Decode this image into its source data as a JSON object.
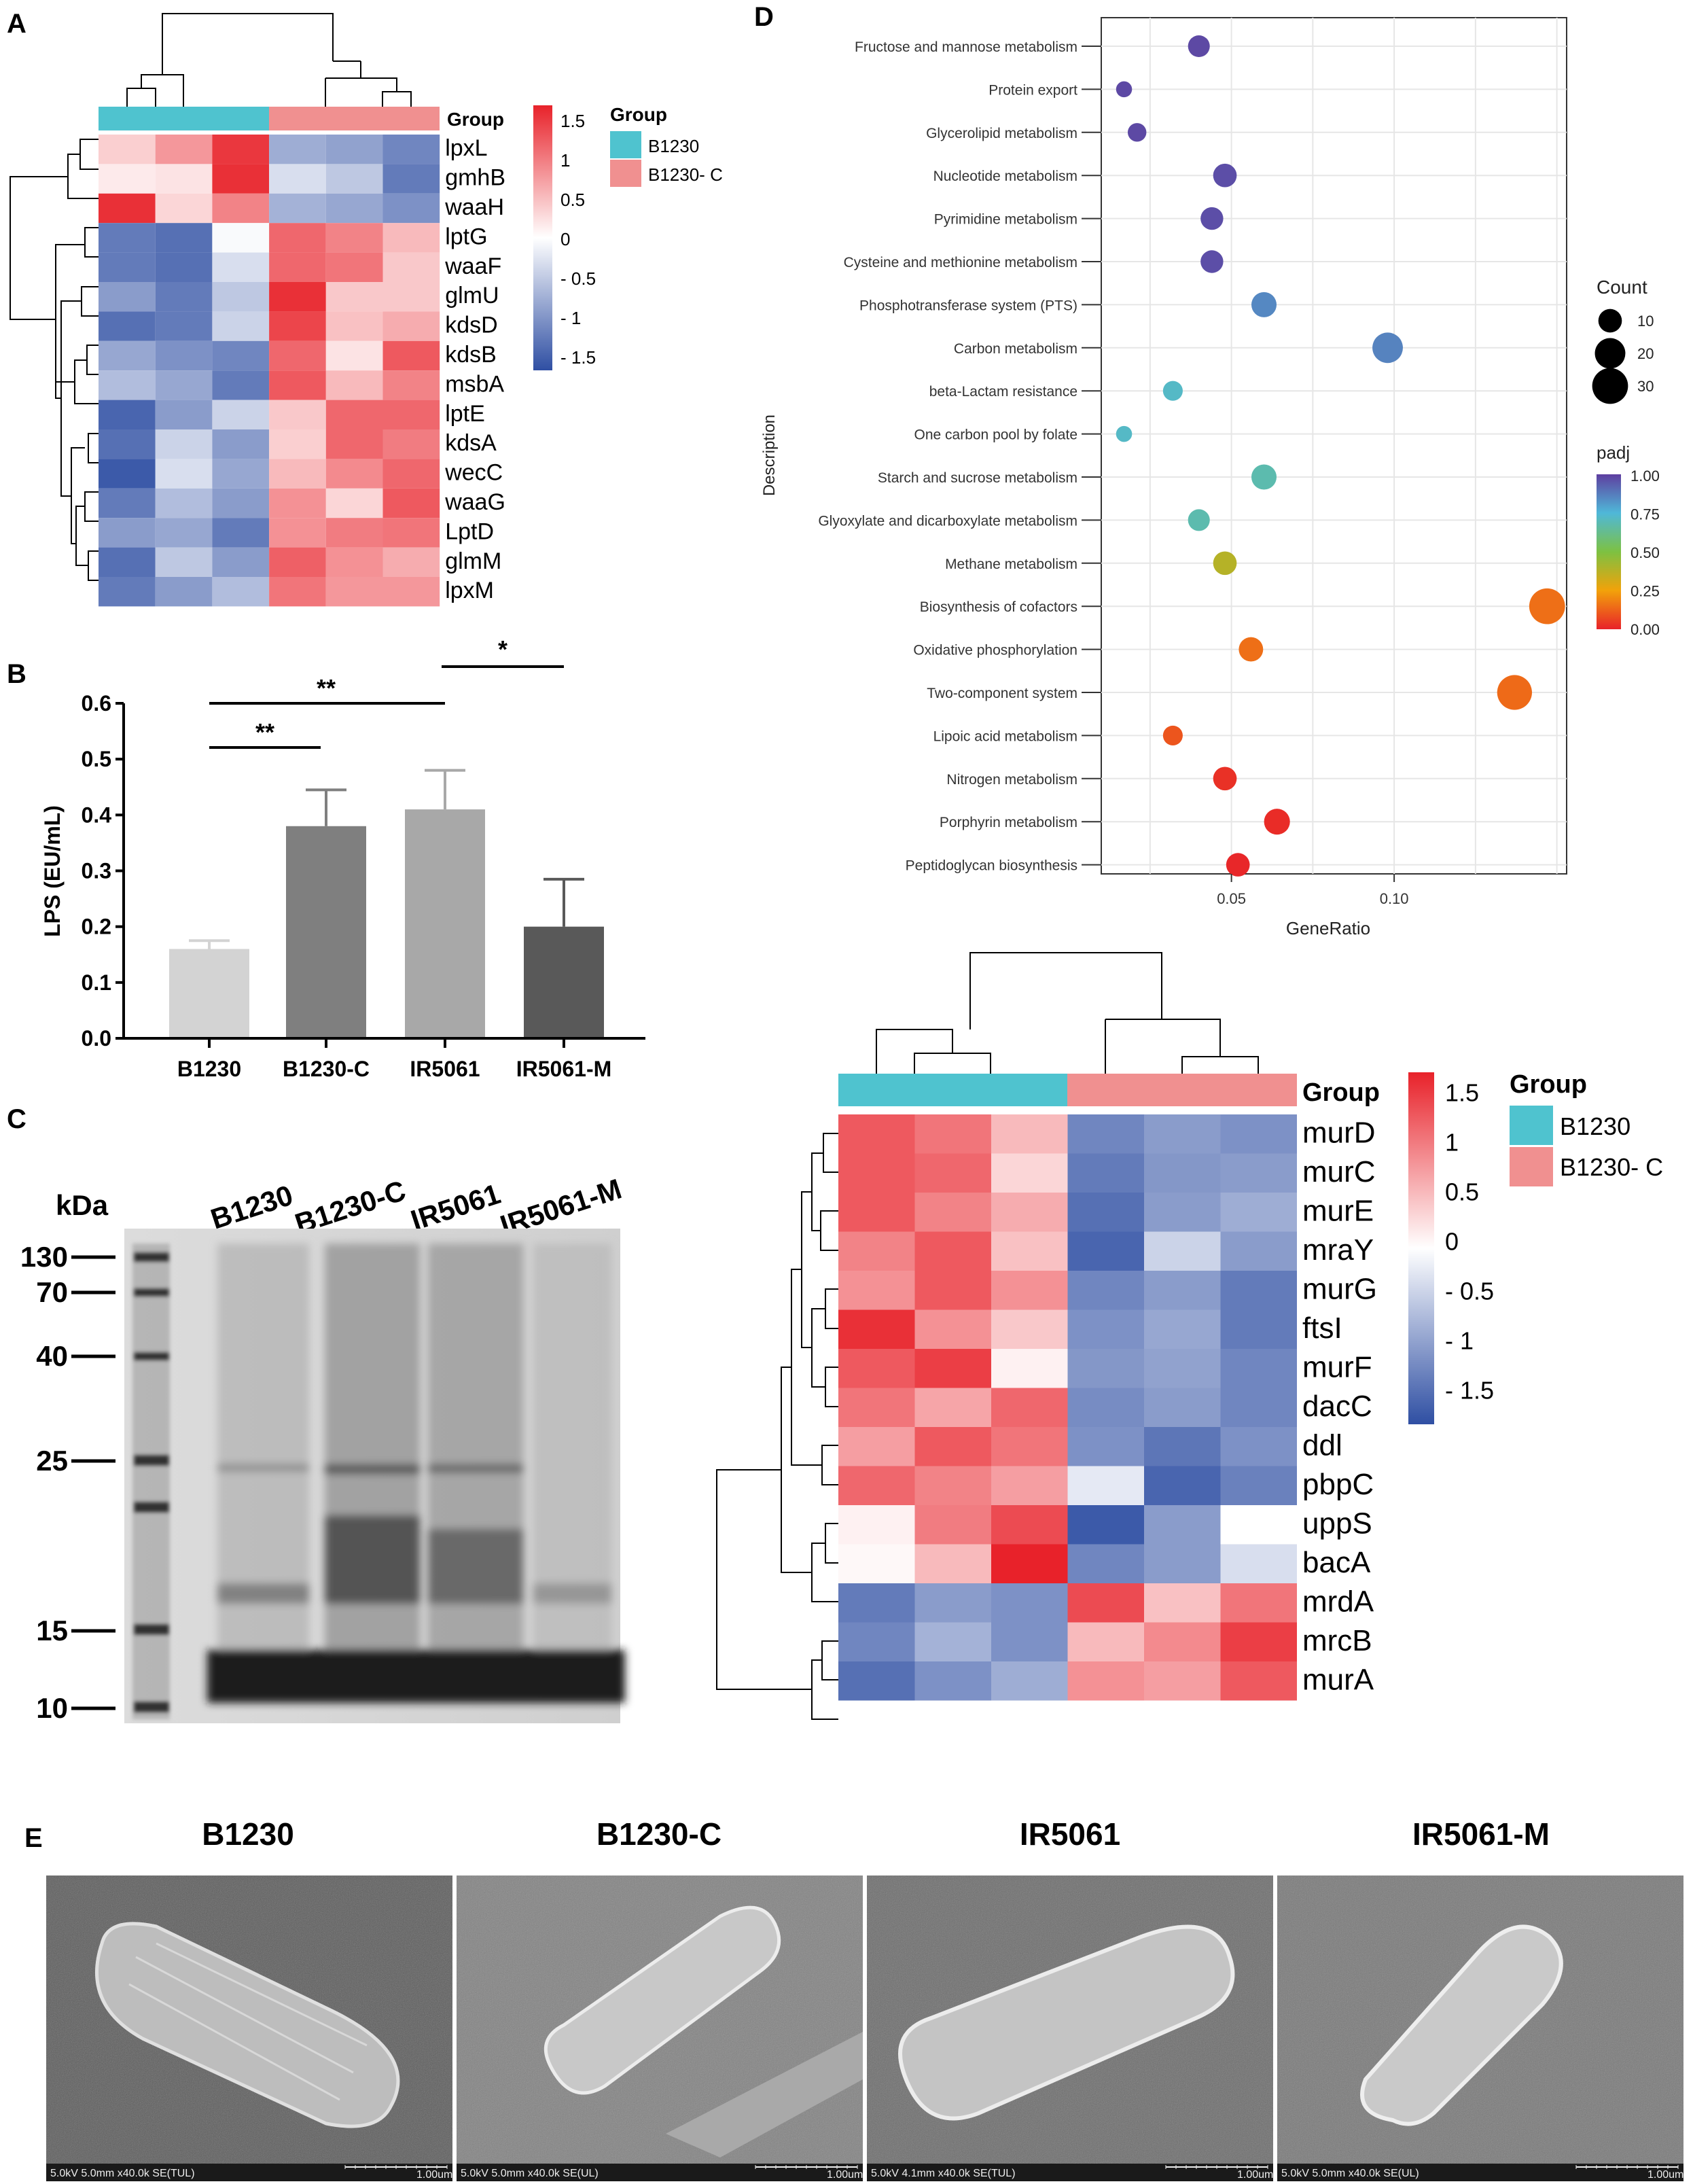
{
  "panels": {
    "A": "A",
    "B": "B",
    "C": "C",
    "D": "D",
    "E": "E"
  },
  "colors": {
    "teal": "#4fc3cf",
    "salmon": "#f09090",
    "hot": "#e8222a",
    "cold": "#2f4fa3",
    "mid": "#ffffff"
  },
  "heatA": {
    "group_label": "Group",
    "legend_title": "Group",
    "groups": [
      "B1230",
      "B1230- C"
    ],
    "scale_ticks": [
      "1.5",
      "1",
      "0.5",
      "0",
      "- 0.5",
      "- 1",
      "- 1.5"
    ],
    "genes": [
      "lpxL",
      "gmhB",
      "waaH",
      "lptG",
      "waaF",
      "glmU",
      "kdsD",
      "kdsB",
      "msbA",
      "lptE",
      "kdsA",
      "wecC",
      "waaG",
      "LptD",
      "glmM",
      "lpxM"
    ],
    "values": [
      [
        0.35,
        0.75,
        1.45,
        -0.75,
        -0.85,
        -1.1
      ],
      [
        0.15,
        0.2,
        1.5,
        -0.3,
        -0.5,
        -1.2
      ],
      [
        1.5,
        0.3,
        0.9,
        -0.7,
        -0.8,
        -1.0
      ],
      [
        -1.2,
        -1.3,
        -0.05,
        1.1,
        0.9,
        0.5
      ],
      [
        -1.2,
        -1.3,
        -0.3,
        1.1,
        1.0,
        0.4
      ],
      [
        -0.9,
        -1.2,
        -0.5,
        1.5,
        0.4,
        0.4
      ],
      [
        -1.3,
        -1.2,
        -0.4,
        1.35,
        0.45,
        0.6
      ],
      [
        -0.8,
        -1.0,
        -1.1,
        1.1,
        0.2,
        1.2
      ],
      [
        -0.6,
        -0.8,
        -1.2,
        1.2,
        0.5,
        0.9
      ],
      [
        -1.4,
        -0.9,
        -0.4,
        0.4,
        1.1,
        1.1
      ],
      [
        -1.3,
        -0.4,
        -0.9,
        0.35,
        1.1,
        0.95
      ],
      [
        -1.5,
        -0.3,
        -0.8,
        0.5,
        0.85,
        1.1
      ],
      [
        -1.2,
        -0.6,
        -0.9,
        0.8,
        0.3,
        1.2
      ],
      [
        -0.9,
        -0.8,
        -1.2,
        0.8,
        0.95,
        1.0
      ],
      [
        -1.3,
        -0.5,
        -0.9,
        1.15,
        0.8,
        0.6
      ],
      [
        -1.2,
        -0.9,
        -0.6,
        1.0,
        0.75,
        0.75
      ]
    ]
  },
  "chart_data": [
    {
      "type": "bar",
      "title": "",
      "ylabel": "LPS (EU/mL)",
      "xlabel": "",
      "categories": [
        "B1230",
        "B1230-C",
        "IR5061",
        "IR5061-M"
      ],
      "values": [
        0.16,
        0.38,
        0.41,
        0.2
      ],
      "errors": [
        0.015,
        0.065,
        0.07,
        0.085
      ],
      "colors": [
        "#d3d3d3",
        "#7f7f7f",
        "#a8a8a8",
        "#595959"
      ],
      "ylim": [
        0,
        0.6
      ],
      "yticks": [
        "0.0",
        "0.1",
        "0.2",
        "0.3",
        "0.4",
        "0.5",
        "0.6"
      ],
      "significance": [
        "**",
        "**",
        "*"
      ]
    },
    {
      "type": "scatter",
      "xlabel": "GeneRatio",
      "ylabel": "Description",
      "xticks": [
        "0.05",
        "0.10"
      ],
      "size_legend_title": "Count",
      "size_legend": [
        "10",
        "20",
        "30"
      ],
      "color_legend_title": "padj",
      "color_legend": [
        "1.00",
        "0.75",
        "0.50",
        "0.25",
        "0.00"
      ],
      "terms": [
        {
          "name": "Fructose and mannose metabolism",
          "ratio": 0.04,
          "count": 8,
          "padj": 0.98
        },
        {
          "name": "Protein export",
          "ratio": 0.017,
          "count": 3,
          "padj": 0.98
        },
        {
          "name": "Glycerolipid metabolism",
          "ratio": 0.021,
          "count": 5,
          "padj": 0.98
        },
        {
          "name": "Nucleotide metabolism",
          "ratio": 0.048,
          "count": 10,
          "padj": 0.97
        },
        {
          "name": "Pyrimidine metabolism",
          "ratio": 0.044,
          "count": 9,
          "padj": 0.97
        },
        {
          "name": "Cysteine and methionine metabolism",
          "ratio": 0.044,
          "count": 9,
          "padj": 0.97
        },
        {
          "name": "Phosphotransferase system (PTS)",
          "ratio": 0.06,
          "count": 12,
          "padj": 0.85
        },
        {
          "name": "Carbon metabolism",
          "ratio": 0.098,
          "count": 20,
          "padj": 0.86
        },
        {
          "name": "beta-Lactam resistance",
          "ratio": 0.032,
          "count": 6,
          "padj": 0.72
        },
        {
          "name": "One carbon pool by folate",
          "ratio": 0.017,
          "count": 3,
          "padj": 0.72
        },
        {
          "name": "Starch and sucrose metabolism",
          "ratio": 0.06,
          "count": 12,
          "padj": 0.68
        },
        {
          "name": "Glyoxylate and dicarboxylate metabolism",
          "ratio": 0.04,
          "count": 8,
          "padj": 0.68
        },
        {
          "name": "Methane metabolism",
          "ratio": 0.048,
          "count": 10,
          "padj": 0.38
        },
        {
          "name": "Biosynthesis of cofactors",
          "ratio": 0.147,
          "count": 30,
          "padj": 0.15
        },
        {
          "name": "Oxidative phosphorylation",
          "ratio": 0.056,
          "count": 11,
          "padj": 0.15
        },
        {
          "name": "Two-component system",
          "ratio": 0.137,
          "count": 28,
          "padj": 0.14
        },
        {
          "name": "Lipoic acid metabolism",
          "ratio": 0.032,
          "count": 6,
          "padj": 0.1
        },
        {
          "name": "Nitrogen metabolism",
          "ratio": 0.048,
          "count": 10,
          "padj": 0.03
        },
        {
          "name": "Porphyrin metabolism",
          "ratio": 0.064,
          "count": 13,
          "padj": 0.02
        },
        {
          "name": "Peptidoglycan biosynthesis",
          "ratio": 0.052,
          "count": 10,
          "padj": 0.01
        }
      ]
    }
  ],
  "heatB": {
    "group_label": "Group",
    "legend_title": "Group",
    "groups": [
      "B1230",
      "B1230- C"
    ],
    "scale_ticks": [
      "1.5",
      "1",
      "0.5",
      "0",
      "- 0.5",
      "- 1",
      "- 1.5"
    ],
    "genes": [
      "murD",
      "murC",
      "murE",
      "mraY",
      "murG",
      "ftsI",
      "murF",
      "dacC",
      "ddl",
      "pbpC",
      "uppS",
      "bacA",
      "mrdA",
      "mrcB",
      "murA"
    ],
    "values": [
      [
        1.2,
        1.0,
        0.5,
        -1.1,
        -0.9,
        -1.0
      ],
      [
        1.2,
        1.1,
        0.3,
        -1.2,
        -0.95,
        -0.9
      ],
      [
        1.2,
        0.9,
        0.6,
        -1.3,
        -0.9,
        -0.75
      ],
      [
        0.9,
        1.2,
        0.45,
        -1.4,
        -0.4,
        -0.9
      ],
      [
        0.8,
        1.2,
        0.8,
        -1.1,
        -0.9,
        -1.2
      ],
      [
        1.5,
        0.8,
        0.4,
        -1.0,
        -0.8,
        -1.2
      ],
      [
        1.2,
        1.4,
        0.1,
        -0.95,
        -0.85,
        -1.1
      ],
      [
        1.0,
        0.65,
        1.1,
        -1.05,
        -0.9,
        -1.1
      ],
      [
        0.7,
        1.2,
        1.0,
        -1.0,
        -1.25,
        -1.0
      ],
      [
        1.1,
        0.9,
        0.7,
        -0.2,
        -1.4,
        -1.15
      ],
      [
        0.1,
        0.95,
        1.3,
        -1.5,
        -0.9,
        0.0
      ],
      [
        0.05,
        0.5,
        1.6,
        -1.1,
        -0.9,
        -0.3
      ],
      [
        -1.2,
        -0.9,
        -1.0,
        1.3,
        0.45,
        1.0
      ],
      [
        -1.1,
        -0.7,
        -1.0,
        0.5,
        0.85,
        1.4
      ],
      [
        -1.3,
        -1.0,
        -0.75,
        0.8,
        0.7,
        1.2
      ]
    ]
  },
  "gel": {
    "unit": "kDa",
    "markers": [
      "130",
      "70",
      "40",
      "25",
      "15",
      "10"
    ],
    "lanes": [
      "B1230",
      "B1230-C",
      "IR5061",
      "IR5061-M"
    ]
  },
  "sem": [
    {
      "title": "B1230",
      "footer": "5.0kV 5.0mm x40.0k SE(TUL)",
      "scale": "1.00um"
    },
    {
      "title": "B1230-C",
      "footer": "5.0kV 5.0mm x40.0k SE(UL)",
      "scale": "1.00um"
    },
    {
      "title": "IR5061",
      "footer": "5.0kV 4.1mm x40.0k SE(TUL)",
      "scale": "1.00um"
    },
    {
      "title": "IR5061-M",
      "footer": "5.0kV 5.0mm x40.0k SE(UL)",
      "scale": "1.00um"
    }
  ]
}
